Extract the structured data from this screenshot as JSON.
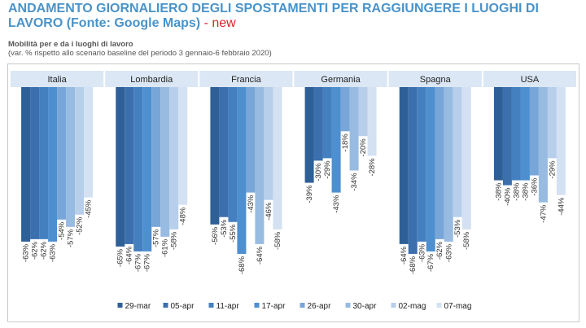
{
  "title": {
    "main": "ANDAMENTO GIORNALIERO DEGLI SPOSTAMENTI PER RAGGIUNGERE I LUOGHI DI LAVORO (Fonte: Google Maps)",
    "tag": "- new"
  },
  "subtitle": "Mobilità per e da i luoghi di lavoro",
  "note": "(var. % rispetto allo scenario baseline del periodo 3 gennaio-6 febbraio 2020)",
  "chart_data": {
    "type": "bar",
    "categories": [
      "Italia",
      "Lombardia",
      "Francia",
      "Germania",
      "Spagna",
      "USA"
    ],
    "series": [
      {
        "name": "29-mar",
        "color": "#2e5f96",
        "values": [
          -63,
          -65,
          -56,
          -39,
          -64,
          -38
        ]
      },
      {
        "name": "05-apr",
        "color": "#3b6fad",
        "values": [
          -62,
          -64,
          -53,
          -30,
          -68,
          -40
        ]
      },
      {
        "name": "11-apr",
        "color": "#4480c0",
        "values": [
          -62,
          -67,
          -55,
          -29,
          -63,
          -38
        ]
      },
      {
        "name": "17-apr",
        "color": "#4d8fcf",
        "values": [
          -63,
          -67,
          -68,
          -43,
          -67,
          -38
        ]
      },
      {
        "name": "26-apr",
        "color": "#79a6d8",
        "values": [
          -54,
          -57,
          -43,
          -18,
          -62,
          -36
        ]
      },
      {
        "name": "30-apr",
        "color": "#98bbe2",
        "values": [
          -57,
          -61,
          -64,
          -34,
          -63,
          -47
        ]
      },
      {
        "name": "02-mag",
        "color": "#b7cfeb",
        "values": [
          -52,
          -58,
          -46,
          -20,
          -53,
          -29
        ]
      },
      {
        "name": "07-mag",
        "color": "#d3e1f3",
        "values": [
          -45,
          -48,
          -58,
          -28,
          -58,
          -44
        ]
      }
    ],
    "value_suffix": "%",
    "ylim": [
      -72,
      0
    ],
    "grid": false,
    "legend_position": "bottom"
  }
}
